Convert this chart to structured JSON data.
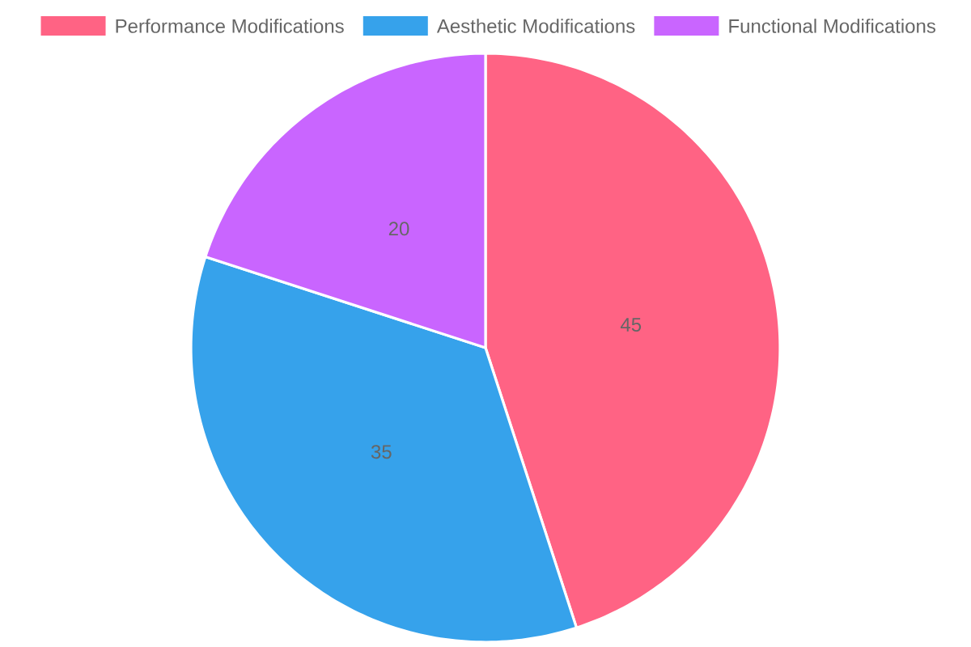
{
  "chart_data": {
    "type": "pie",
    "categories": [
      "Performance Modifications",
      "Aesthetic Modifications",
      "Functional Modifications"
    ],
    "values": [
      45,
      35,
      20
    ],
    "colors": [
      "#ff6384",
      "#36a2eb",
      "#c965ff"
    ],
    "data_labels": true,
    "legend": "top"
  }
}
